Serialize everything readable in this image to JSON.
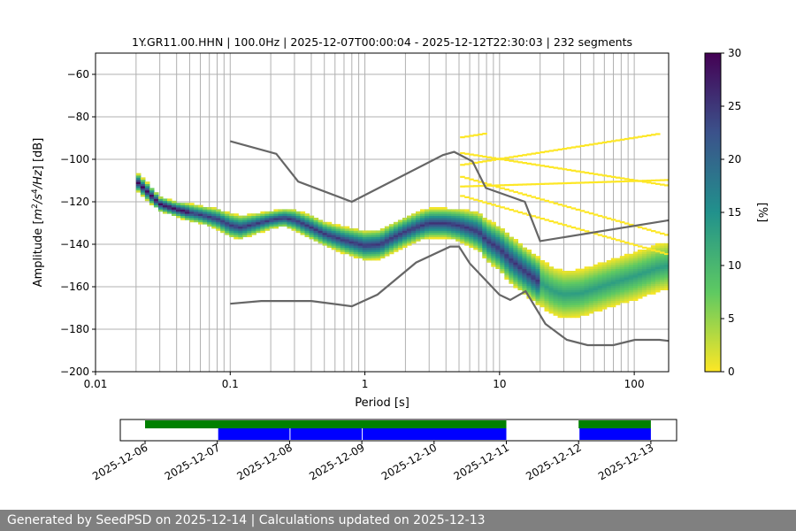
{
  "chart_data": [
    {
      "type": "heatmap",
      "title": "1Y.GR11.00.HHN | 100.0Hz | 2025-12-07T00:00:04 - 2025-12-12T22:30:03 | 232 segments",
      "xlabel": "Period [s]",
      "ylabel": "Amplitude [m²/s⁴/Hz] [dB]",
      "x_scale": "log",
      "xlim": [
        0.01,
        180
      ],
      "ylim": [
        -200,
        -50
      ],
      "x_ticks": [
        0.01,
        0.1,
        1,
        10,
        100
      ],
      "x_tick_labels": [
        "0.01",
        "0.1",
        "1",
        "10",
        "100"
      ],
      "y_ticks": [
        -200,
        -180,
        -160,
        -140,
        -120,
        -100,
        -80,
        -60
      ],
      "y_tick_labels": [
        "−200",
        "−180",
        "−160",
        "−140",
        "−120",
        "−100",
        "−80",
        "−60"
      ],
      "grid": true,
      "colorbar": {
        "label": "[%]",
        "range": [
          0,
          30
        ],
        "ticks": [
          0,
          5,
          10,
          15,
          20,
          25,
          30
        ],
        "colormap": "viridis_r"
      },
      "mode_curve": {
        "x": [
          0.02,
          0.025,
          0.03,
          0.04,
          0.05,
          0.06,
          0.08,
          0.1,
          0.12,
          0.15,
          0.2,
          0.25,
          0.3,
          0.4,
          0.5,
          0.7,
          1.0,
          1.3,
          1.6,
          2.0,
          2.5,
          3.0,
          4.0,
          5.0,
          6.0,
          7.0,
          8.0,
          10.0,
          12.0,
          15.0,
          20.0,
          25.0,
          30.0,
          40.0,
          50.0,
          70.0,
          100.0,
          150.0,
          180.0
        ],
        "y": [
          -110,
          -116,
          -121,
          -123.5,
          -125,
          -126,
          -128,
          -131,
          -132,
          -130.5,
          -128.5,
          -127.5,
          -128.5,
          -132,
          -135,
          -138,
          -140.5,
          -140,
          -137,
          -134,
          -131.5,
          -130,
          -130,
          -131,
          -132.5,
          -134,
          -138,
          -142,
          -147,
          -152,
          -158,
          -162,
          -163.5,
          -163,
          -161,
          -158,
          -155,
          -151,
          -150
        ],
        "band_halfwidth_db": [
          3,
          3,
          2.5,
          2.5,
          3,
          3,
          3.5,
          4,
          4,
          3.5,
          3,
          3,
          3.5,
          4,
          4,
          4.5,
          5,
          5,
          5,
          5,
          5,
          5,
          5,
          5.5,
          6,
          6.5,
          7,
          7.5,
          8,
          8,
          8,
          8,
          8,
          8,
          8,
          8,
          8,
          8,
          8
        ]
      },
      "noise_models": [
        {
          "x": [
            0.1,
            0.17,
            0.4,
            0.8,
            1.24,
            2.4,
            4.3,
            5.0,
            6.0,
            10.0,
            12.0,
            15.6,
            21.9,
            31.6,
            45.0,
            70.0,
            101.0,
            154.0,
            180.0
          ],
          "y": [
            -168,
            -166.7,
            -166.7,
            -169.2,
            -163.7,
            -148.6,
            -141.1,
            -141.1,
            -149,
            -163.8,
            -166.2,
            -162.1,
            -177.5,
            -185,
            -187.5,
            -187.5,
            -185,
            -185,
            -185.5
          ]
        },
        {
          "x": [
            0.1,
            0.22,
            0.32,
            0.8,
            3.8,
            4.6,
            6.3,
            7.9,
            15.4,
            20.0,
            180.0
          ],
          "y": [
            -91.5,
            -97.4,
            -110.5,
            -120,
            -98,
            -96.5,
            -101,
            -113.5,
            -120,
            -138.5,
            -128.7
          ]
        }
      ],
      "spurious_lines_x": [
        5,
        7,
        10,
        15,
        20,
        30,
        50,
        80,
        120,
        170
      ],
      "spurious_lines_y": [
        -90,
        -97,
        -103,
        -108,
        -113,
        -117
      ]
    },
    {
      "type": "timeline",
      "x_ticks": [
        "2025-12-06",
        "2025-12-07",
        "2025-12-08",
        "2025-12-09",
        "2025-12-10",
        "2025-12-11",
        "2025-12-12",
        "2025-12-13"
      ],
      "green_intervals": [
        [
          "2025-12-06",
          "2025-12-11"
        ],
        [
          "2025-12-12",
          "2025-12-13"
        ]
      ],
      "blue_intervals": [
        [
          "2025-12-07",
          "2025-12-08"
        ],
        [
          "2025-12-08",
          "2025-12-09"
        ],
        [
          "2025-12-09",
          "2025-12-11"
        ],
        [
          "2025-12-12",
          "2025-12-13"
        ]
      ]
    }
  ],
  "footer": {
    "text": "Generated by SeedPSD on 2025-12-14 | Calculations updated on 2025-12-13"
  },
  "colors": {
    "noise_model": "#666666",
    "timeline_green": "#008000",
    "timeline_blue": "#0000ff",
    "footer_bg": "#808080",
    "grid": "#b0b0b0"
  }
}
